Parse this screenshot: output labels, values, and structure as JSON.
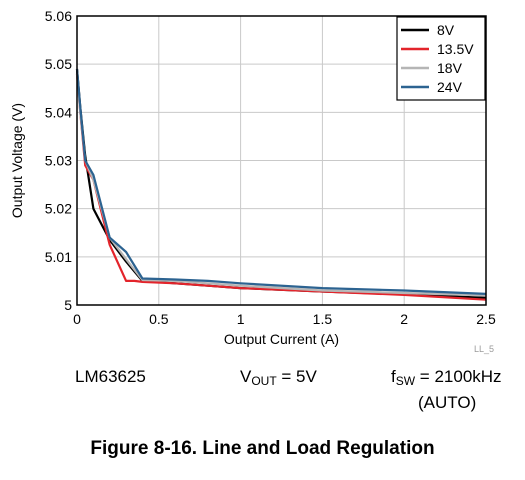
{
  "chart_data": {
    "type": "line",
    "xlabel": "Output Current (A)",
    "ylabel": "Output Voltage (V)",
    "xlim": [
      0,
      2.5
    ],
    "ylim": [
      5.0,
      5.06
    ],
    "x_ticks": [
      "0",
      "0.5",
      "1",
      "1.5",
      "2",
      "2.5"
    ],
    "y_ticks": [
      "5",
      "5.01",
      "5.02",
      "5.03",
      "5.04",
      "5.05",
      "5.06"
    ],
    "grid": true,
    "legend_position": "top-right",
    "series": [
      {
        "name": "8V",
        "color": "#000000",
        "x": [
          0,
          0.02,
          0.05,
          0.1,
          0.2,
          0.3,
          0.4,
          0.6,
          0.8,
          1.0,
          1.5,
          2.0,
          2.5
        ],
        "y": [
          5.049,
          5.041,
          5.031,
          5.02,
          5.0135,
          5.009,
          5.005,
          5.0045,
          5.004,
          5.0035,
          5.0028,
          5.0022,
          5.0015
        ]
      },
      {
        "name": "13.5V",
        "color": "#e3242b",
        "x": [
          0,
          0.02,
          0.05,
          0.1,
          0.2,
          0.3,
          0.35,
          0.4,
          0.6,
          0.8,
          1.0,
          1.5,
          2.0,
          2.5
        ],
        "y": [
          5.048,
          5.04,
          5.029,
          5.026,
          5.0125,
          5.005,
          5.005,
          5.0048,
          5.0045,
          5.004,
          5.0035,
          5.0028,
          5.0021,
          5.0011
        ]
      },
      {
        "name": "18V",
        "color": "#b5b5b5",
        "x": [
          0,
          0.02,
          0.05,
          0.1,
          0.2,
          0.3,
          0.4,
          0.6,
          0.8,
          1.0,
          1.5,
          2.0,
          2.5
        ],
        "y": [
          5.048,
          5.04,
          5.03,
          5.026,
          5.014,
          5.0095,
          5.0052,
          5.005,
          5.0045,
          5.004,
          5.003,
          5.0025,
          5.002
        ]
      },
      {
        "name": "24V",
        "color": "#2c6391",
        "x": [
          0,
          0.02,
          0.05,
          0.1,
          0.2,
          0.3,
          0.4,
          0.6,
          0.8,
          1.0,
          1.5,
          2.0,
          2.5
        ],
        "y": [
          5.049,
          5.041,
          5.03,
          5.027,
          5.014,
          5.011,
          5.0055,
          5.0053,
          5.005,
          5.0045,
          5.0035,
          5.003,
          5.0023
        ]
      }
    ]
  },
  "figure_code": "LL_5",
  "conditions": {
    "device": "LM63625",
    "vout_symbol": "V",
    "vout_sub": "OUT",
    "vout_value": " = 5V",
    "fsw_symbol": "f",
    "fsw_sub": "SW",
    "fsw_value": " = 2100kHz",
    "mode": "(AUTO)"
  },
  "caption": "Figure 8-16. Line and Load Regulation"
}
